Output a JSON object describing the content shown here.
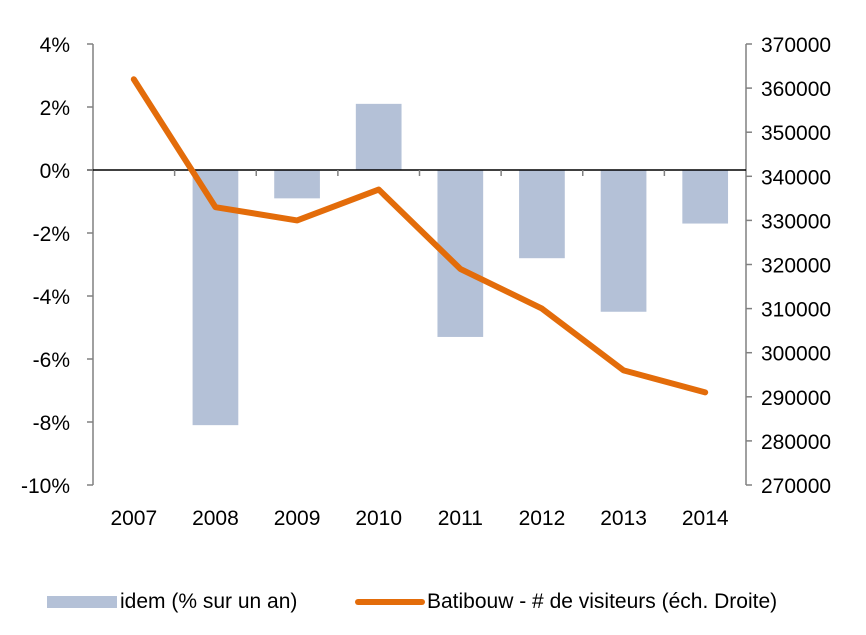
{
  "chart_data": {
    "type": "bar+line",
    "categories": [
      "2007",
      "2008",
      "2009",
      "2010",
      "2011",
      "2012",
      "2013",
      "2014"
    ],
    "series": [
      {
        "name": "idem (% sur un an)",
        "type": "bar",
        "axis": "left",
        "color": "#b4c1d7",
        "values": [
          null,
          -8.1,
          -0.9,
          2.1,
          -5.3,
          -2.8,
          -4.5,
          -1.7
        ]
      },
      {
        "name": "Batibouw - # de visiteurs (éch. Droite)",
        "type": "line",
        "axis": "right",
        "color": "#e36c0a",
        "values": [
          362000,
          333000,
          330000,
          337000,
          319000,
          310000,
          296000,
          291000
        ]
      }
    ],
    "left_axis": {
      "ylim": [
        -10,
        4
      ],
      "ticks": [
        4,
        2,
        0,
        -2,
        -4,
        -6,
        -8,
        -10
      ],
      "tick_labels": [
        "4%",
        "2%",
        "0%",
        "-2%",
        "-4%",
        "-6%",
        "-8%",
        "-10%"
      ]
    },
    "right_axis": {
      "ylim": [
        270000,
        370000
      ],
      "ticks": [
        370000,
        360000,
        350000,
        340000,
        330000,
        320000,
        310000,
        300000,
        290000,
        280000,
        270000
      ],
      "tick_labels": [
        "370000",
        "360000",
        "350000",
        "340000",
        "330000",
        "320000",
        "310000",
        "300000",
        "290000",
        "280000",
        "270000"
      ]
    },
    "title": "",
    "xlabel": "",
    "ylabel": "",
    "grid": false,
    "legend_position": "bottom"
  },
  "legend": {
    "bar_label": "idem (% sur un an)",
    "line_label": "Batibouw - # de visiteurs (éch. Droite)"
  }
}
